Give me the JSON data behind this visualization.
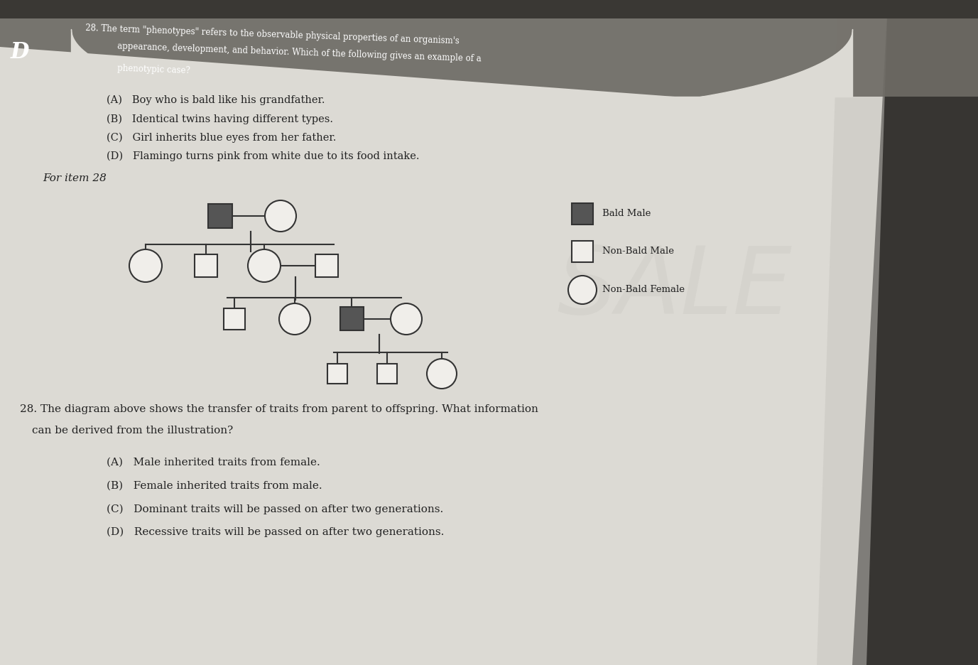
{
  "paper_color": "#dcdad4",
  "text_color": "#222222",
  "line_color": "#333333",
  "filled_color": "#555555",
  "empty_color": "#f0eeea",
  "outline_color": "#333333",
  "header_dark": "#6e6b65",
  "header_mid": "#9a9590",
  "corner_dark": "#222222",
  "q27_line1": "28. The term \"phenotypes\" refers to the observable physical properties of an organism's",
  "q27_line2": "    appearance, development, and behavior. Which of the following gives an example of a",
  "q27_line3": "    phenotypic case?",
  "options_q27": [
    "(A)   Boy who is bald like his grandfather.",
    "(B)   Identical twins having different types.",
    "(C)   Girl inherits blue eyes from her father.",
    "(D)   Flamingo turns pink from white due to its food intake."
  ],
  "for_item_28": "For item 28",
  "legend_labels": [
    "Bald Male",
    "Non-Bald Male",
    "Non-Bald Female"
  ],
  "q28_line1": "28. The diagram above shows the transfer of traits from parent to offspring. What information",
  "q28_line2": "    can be derived from the illustration?",
  "options_q28": [
    "(A)   Male inherited traits from female.",
    "(B)   Female inherited traits from male.",
    "(C)   Dominant traits will be passed on after two generations.",
    "(D)   Recessive traits will be passed on after two generations."
  ]
}
